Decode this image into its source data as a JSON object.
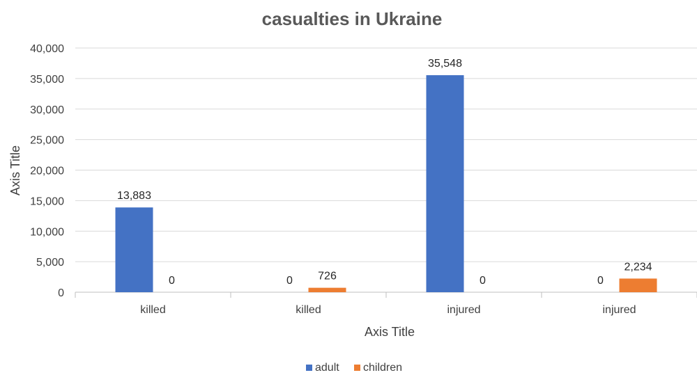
{
  "chart_data": {
    "type": "bar",
    "title": "casualties in Ukraine",
    "xlabel": "Axis Title",
    "ylabel": "Axis Title",
    "categories": [
      "killed",
      "killed",
      "injured",
      "injured"
    ],
    "series": [
      {
        "name": "adult",
        "values": [
          13883,
          0,
          35548,
          0
        ],
        "color": "#4472C4"
      },
      {
        "name": "children",
        "values": [
          0,
          726,
          0,
          2234
        ],
        "color": "#ED7D31"
      }
    ],
    "data_labels": [
      [
        "13,883",
        "0",
        "35,548",
        "0"
      ],
      [
        "0",
        "726",
        "0",
        "2,234"
      ]
    ],
    "ylim": [
      0,
      40000
    ],
    "yticks": [
      0,
      5000,
      10000,
      15000,
      20000,
      25000,
      30000,
      35000,
      40000
    ],
    "ytick_labels": [
      "0",
      "5,000",
      "10,000",
      "15,000",
      "20,000",
      "25,000",
      "30,000",
      "35,000",
      "40,000"
    ],
    "grid": true,
    "legend_position": "bottom"
  }
}
